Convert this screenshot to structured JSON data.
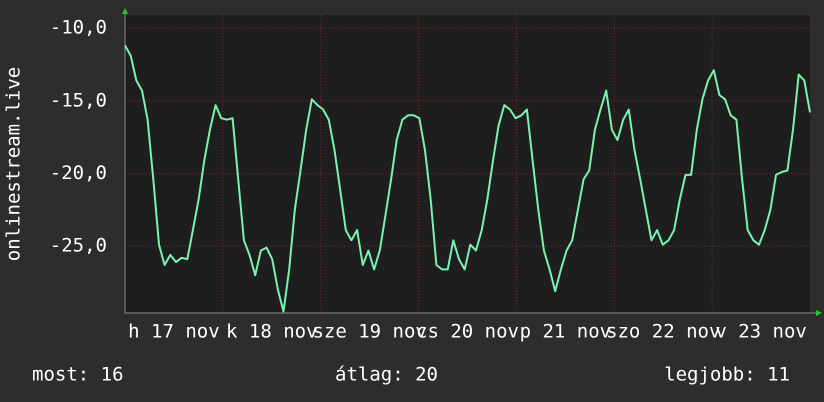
{
  "chart_data": {
    "type": "line",
    "y_label": "onlinestream.live",
    "x_labels": [
      "h 17 nov",
      "k 18 nov",
      "sze 19 nov",
      "cs 20 nov",
      "p 21 nov",
      "szo 22 nov",
      "v 23 nov"
    ],
    "series": [
      {
        "name": "onlinestream.live",
        "color": "#7af2b0",
        "values": [
          -11.2,
          -11.9,
          -13.6,
          -14.3,
          -16.3,
          -20.4,
          -24.9,
          -26.3,
          -25.6,
          -26.1,
          -25.8,
          -25.9,
          -23.9,
          -21.8,
          -19.1,
          -17.0,
          -15.3,
          -16.2,
          -16.3,
          -16.2,
          -20.4,
          -24.6,
          -25.6,
          -27.0,
          -25.3,
          -25.1,
          -25.9,
          -28.0,
          -29.5,
          -26.6,
          -22.5,
          -19.8,
          -17.0,
          -14.9,
          -15.3,
          -15.6,
          -16.3,
          -18.4,
          -21.1,
          -23.9,
          -24.6,
          -23.9,
          -26.3,
          -25.3,
          -26.6,
          -25.3,
          -22.9,
          -20.4,
          -17.7,
          -16.3,
          -16.0,
          -16.0,
          -16.2,
          -18.4,
          -21.8,
          -26.3,
          -26.6,
          -26.6,
          -24.6,
          -25.9,
          -26.6,
          -24.9,
          -25.3,
          -23.9,
          -21.8,
          -19.1,
          -16.7,
          -15.3,
          -15.6,
          -16.2,
          -16.0,
          -15.6,
          -19.1,
          -22.5,
          -25.3,
          -26.6,
          -28.1,
          -26.6,
          -25.3,
          -24.6,
          -22.5,
          -20.4,
          -19.8,
          -17.0,
          -15.6,
          -14.3,
          -17.0,
          -17.7,
          -16.3,
          -15.6,
          -18.4,
          -20.4,
          -22.5,
          -24.6,
          -23.9,
          -24.9,
          -24.6,
          -23.9,
          -21.8,
          -20.1,
          -20.1,
          -17.0,
          -14.9,
          -13.6,
          -12.9,
          -14.6,
          -14.9,
          -16.0,
          -16.3,
          -20.4,
          -23.9,
          -24.6,
          -24.9,
          -23.9,
          -22.5,
          -20.1,
          -19.9,
          -19.8,
          -17.0,
          -13.2,
          -13.6,
          -15.8
        ]
      }
    ],
    "ylim": [
      -29.6,
      -9.1
    ],
    "yticks": [
      {
        "value": -10,
        "label": "-10,0"
      },
      {
        "value": -15,
        "label": "-15,0"
      },
      {
        "value": -20,
        "label": "-20,0"
      },
      {
        "value": -25,
        "label": "-25,0"
      }
    ],
    "grid": true,
    "footer": [
      "most: 16",
      "átlag: 20",
      "legjobb: 11"
    ]
  }
}
